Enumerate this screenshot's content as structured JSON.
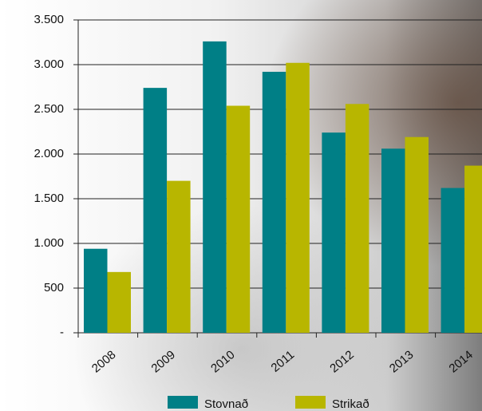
{
  "chart_data": {
    "type": "bar",
    "categories": [
      "2008",
      "2009",
      "2010",
      "2011",
      "2012",
      "2013",
      "2014"
    ],
    "series": [
      {
        "name": "Stovnað",
        "color": "#007f86",
        "values": [
          940,
          2740,
          3260,
          2920,
          2240,
          2060,
          1620
        ]
      },
      {
        "name": "Strikað",
        "color": "#b8b600",
        "values": [
          680,
          1700,
          2540,
          3020,
          2560,
          2190,
          1870
        ]
      }
    ],
    "ylim": [
      0,
      3500
    ],
    "yticks": [
      {
        "value": 0,
        "label": "-"
      },
      500,
      {
        "value": 1000,
        "label": "1.000"
      },
      {
        "value": 1500,
        "label": "1.500"
      },
      {
        "value": 2000,
        "label": "2.000"
      },
      {
        "value": 2500,
        "label": "2.500"
      },
      {
        "value": 3000,
        "label": "3.000"
      },
      {
        "value": 3500,
        "label": "3.500"
      }
    ],
    "grid": true,
    "legend": "bottom"
  }
}
